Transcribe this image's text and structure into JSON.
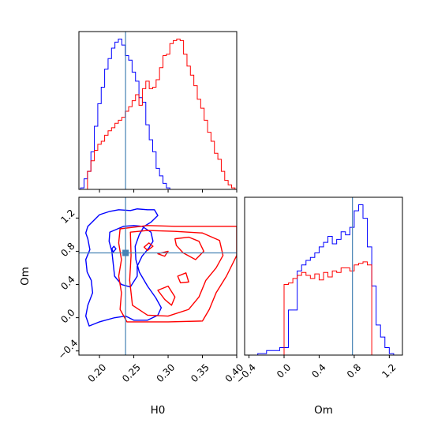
{
  "chart_data": {
    "type": "corner",
    "parameters": [
      "H0",
      "Om"
    ],
    "truths": {
      "H0": 0.238,
      "Om": 0.78
    },
    "colors": {
      "blue": "#0000ff",
      "red": "#ff0000",
      "truth": "#4682b4"
    },
    "panels": {
      "h0_hist": {
        "type": "histogram",
        "xlim": [
          0.17,
          0.4
        ],
        "xticks": [
          "0.20",
          "0.25",
          "0.30",
          "0.35",
          "0.40"
        ],
        "series": [
          {
            "color": "#0000ff",
            "bin_edges": [
              0.1725,
              0.1775,
              0.1825,
              0.1875,
              0.1925,
              0.1975,
              0.2025,
              0.2075,
              0.2125,
              0.2175,
              0.2225,
              0.2275,
              0.2325,
              0.2375,
              0.2425,
              0.2475,
              0.2525,
              0.2575,
              0.2625,
              0.2675,
              0.2725,
              0.2775,
              0.2825,
              0.2875,
              0.2925,
              0.2975,
              0.3025
            ],
            "counts": [
              0.01,
              0.07,
              0.12,
              0.25,
              0.42,
              0.57,
              0.68,
              0.8,
              0.87,
              0.94,
              0.98,
              1.0,
              0.96,
              0.89,
              0.86,
              0.78,
              0.72,
              0.61,
              0.58,
              0.43,
              0.33,
              0.25,
              0.14,
              0.09,
              0.04,
              0.01
            ]
          },
          {
            "color": "#ff0000",
            "bin_edges": [
              0.1825,
              0.1875,
              0.1925,
              0.1975,
              0.2025,
              0.2075,
              0.2125,
              0.2175,
              0.2225,
              0.2275,
              0.2325,
              0.2375,
              0.2425,
              0.2475,
              0.2525,
              0.2575,
              0.2625,
              0.2675,
              0.2725,
              0.2775,
              0.2825,
              0.2875,
              0.2925,
              0.2975,
              0.3025,
              0.3075,
              0.3125,
              0.3175,
              0.3225,
              0.3275,
              0.3325,
              0.3375,
              0.3425,
              0.3475,
              0.3525,
              0.3575,
              0.3625,
              0.3675,
              0.3725,
              0.3775,
              0.3825,
              0.3875,
              0.3925,
              0.3975
            ],
            "counts": [
              0.12,
              0.19,
              0.26,
              0.3,
              0.32,
              0.36,
              0.39,
              0.41,
              0.44,
              0.46,
              0.48,
              0.52,
              0.55,
              0.59,
              0.63,
              0.56,
              0.67,
              0.72,
              0.67,
              0.68,
              0.73,
              0.81,
              0.89,
              0.9,
              0.97,
              0.99,
              1.0,
              0.99,
              0.9,
              0.82,
              0.76,
              0.69,
              0.6,
              0.54,
              0.46,
              0.38,
              0.32,
              0.24,
              0.2,
              0.12,
              0.06,
              0.03,
              0.01
            ]
          }
        ]
      },
      "om_hist": {
        "type": "histogram",
        "xlim": [
          -0.45,
          1.35
        ],
        "xticks": [
          "−0.4",
          "0.0",
          "0.4",
          "0.8",
          "1.2"
        ],
        "series": [
          {
            "color": "#0000ff",
            "bin_edges": [
              -0.3,
              -0.2,
              -0.05,
              0.05,
              0.15,
              0.2,
              0.25,
              0.3,
              0.35,
              0.4,
              0.45,
              0.5,
              0.55,
              0.6,
              0.65,
              0.7,
              0.75,
              0.8,
              0.85,
              0.9,
              0.95,
              1.0,
              1.05,
              1.1,
              1.15,
              1.2,
              1.25
            ],
            "counts": [
              0.01,
              0.03,
              0.05,
              0.3,
              0.56,
              0.6,
              0.63,
              0.65,
              0.68,
              0.72,
              0.75,
              0.79,
              0.74,
              0.77,
              0.82,
              0.8,
              0.85,
              0.96,
              1.0,
              0.91,
              0.72,
              0.46,
              0.2,
              0.12,
              0.05,
              0.01
            ]
          },
          {
            "color": "#ff0000",
            "bin_edges": [
              0.0,
              0.05,
              0.1,
              0.15,
              0.2,
              0.25,
              0.3,
              0.35,
              0.4,
              0.45,
              0.5,
              0.55,
              0.6,
              0.65,
              0.7,
              0.75,
              0.8,
              0.85,
              0.9,
              0.95,
              1.0
            ],
            "counts": [
              0.47,
              0.48,
              0.51,
              0.53,
              0.55,
              0.53,
              0.51,
              0.54,
              0.5,
              0.55,
              0.52,
              0.56,
              0.55,
              0.58,
              0.58,
              0.56,
              0.6,
              0.61,
              0.62,
              0.6
            ]
          }
        ]
      },
      "joint": {
        "type": "contour",
        "xlim": [
          0.17,
          0.4
        ],
        "ylim": [
          -0.45,
          1.45
        ],
        "xticks": [
          "0.20",
          "0.25",
          "0.30",
          "0.35",
          "0.40"
        ],
        "yticks": [
          "−0.4",
          "0.0",
          "0.4",
          "0.8",
          "1.2"
        ],
        "xlabel": "H0",
        "ylabel": "Om",
        "series": [
          {
            "color": "#0000ff",
            "contours": [
              [
                [
                  0.183,
                  1.1
                ],
                [
                  0.2,
                  1.24
                ],
                [
                  0.215,
                  1.28
                ],
                [
                  0.228,
                  1.3
                ],
                [
                  0.245,
                  1.29
                ],
                [
                  0.255,
                  1.31
                ],
                [
                  0.27,
                  1.3
                ],
                [
                  0.28,
                  1.3
                ],
                [
                  0.285,
                  1.23
                ],
                [
                  0.275,
                  1.15
                ],
                [
                  0.265,
                  1.1
                ],
                [
                  0.258,
                  1.0
                ],
                [
                  0.252,
                  0.86
                ],
                [
                  0.253,
                  0.7
                ],
                [
                  0.258,
                  0.55
                ],
                [
                  0.27,
                  0.38
                ],
                [
                  0.282,
                  0.24
                ],
                [
                  0.29,
                  0.12
                ],
                [
                  0.285,
                  0.03
                ],
                [
                  0.27,
                  -0.03
                ],
                [
                  0.25,
                  -0.03
                ],
                [
                  0.238,
                  0.02
                ],
                [
                  0.222,
                  0.0
                ],
                [
                  0.2,
                  -0.05
                ],
                [
                  0.185,
                  -0.1
                ],
                [
                  0.18,
                  0.02
                ],
                [
                  0.183,
                  0.15
                ],
                [
                  0.19,
                  0.3
                ],
                [
                  0.188,
                  0.45
                ],
                [
                  0.182,
                  0.55
                ],
                [
                  0.18,
                  0.7
                ],
                [
                  0.186,
                  0.82
                ],
                [
                  0.183,
                  0.95
                ],
                [
                  0.18,
                  1.02
                ]
              ],
              [
                [
                  0.215,
                  1.03
                ],
                [
                  0.235,
                  1.1
                ],
                [
                  0.25,
                  1.11
                ],
                [
                  0.262,
                  1.1
                ],
                [
                  0.275,
                  1.03
                ],
                [
                  0.278,
                  0.92
                ],
                [
                  0.272,
                  0.84
                ],
                [
                  0.262,
                  0.74
                ],
                [
                  0.255,
                  0.62
                ],
                [
                  0.255,
                  0.5
                ],
                [
                  0.245,
                  0.37
                ],
                [
                  0.232,
                  0.4
                ],
                [
                  0.222,
                  0.5
                ],
                [
                  0.22,
                  0.65
                ],
                [
                  0.218,
                  0.8
                ],
                [
                  0.214,
                  0.92
                ]
              ],
              [
                [
                  0.22,
                  0.79
                ],
                [
                  0.224,
                  0.83
                ],
                [
                  0.221,
                  0.86
                ],
                [
                  0.218,
                  0.83
                ]
              ]
            ]
          },
          {
            "color": "#ff0000",
            "contours": [
              [
                [
                  0.23,
                  1.07
                ],
                [
                  0.27,
                  1.11
                ],
                [
                  0.31,
                  1.1
                ],
                [
                  0.35,
                  1.1
                ],
                [
                  0.4,
                  1.1
                ],
                [
                  0.4,
                  0.75
                ],
                [
                  0.385,
                  0.5
                ],
                [
                  0.37,
                  0.3
                ],
                [
                  0.36,
                  0.1
                ],
                [
                  0.35,
                  -0.04
                ],
                [
                  0.3,
                  -0.05
                ],
                [
                  0.24,
                  -0.05
                ],
                [
                  0.23,
                  0.1
                ],
                [
                  0.232,
                  0.3
                ],
                [
                  0.228,
                  0.5
                ],
                [
                  0.232,
                  0.7
                ],
                [
                  0.228,
                  0.9
                ]
              ],
              [
                [
                  0.245,
                  1.03
                ],
                [
                  0.27,
                  1.05
                ],
                [
                  0.31,
                  1.04
                ],
                [
                  0.35,
                  1.02
                ],
                [
                  0.375,
                  0.93
                ],
                [
                  0.38,
                  0.75
                ],
                [
                  0.37,
                  0.6
                ],
                [
                  0.355,
                  0.45
                ],
                [
                  0.345,
                  0.25
                ],
                [
                  0.33,
                  0.1
                ],
                [
                  0.3,
                  0.02
                ],
                [
                  0.27,
                  0.03
                ],
                [
                  0.248,
                  0.15
                ],
                [
                  0.244,
                  0.45
                ],
                [
                  0.246,
                  0.75
                ]
              ],
              [
                [
                  0.31,
                  0.95
                ],
                [
                  0.33,
                  0.97
                ],
                [
                  0.345,
                  0.92
                ],
                [
                  0.352,
                  0.8
                ],
                [
                  0.34,
                  0.7
                ],
                [
                  0.322,
                  0.78
                ],
                [
                  0.312,
                  0.87
                ]
              ],
              [
                [
                  0.27,
                  0.81
                ],
                [
                  0.278,
                  0.86
                ],
                [
                  0.272,
                  0.9
                ],
                [
                  0.265,
                  0.85
                ]
              ],
              [
                [
                  0.285,
                  0.77
                ],
                [
                  0.3,
                  0.8
                ],
                [
                  0.295,
                  0.74
                ]
              ],
              [
                [
                  0.285,
                  0.33
                ],
                [
                  0.3,
                  0.38
                ],
                [
                  0.31,
                  0.25
                ],
                [
                  0.305,
                  0.15
                ],
                [
                  0.295,
                  0.22
                ]
              ],
              [
                [
                  0.314,
                  0.5
                ],
                [
                  0.326,
                  0.54
                ],
                [
                  0.33,
                  0.43
                ],
                [
                  0.318,
                  0.42
                ]
              ]
            ]
          }
        ]
      }
    }
  }
}
